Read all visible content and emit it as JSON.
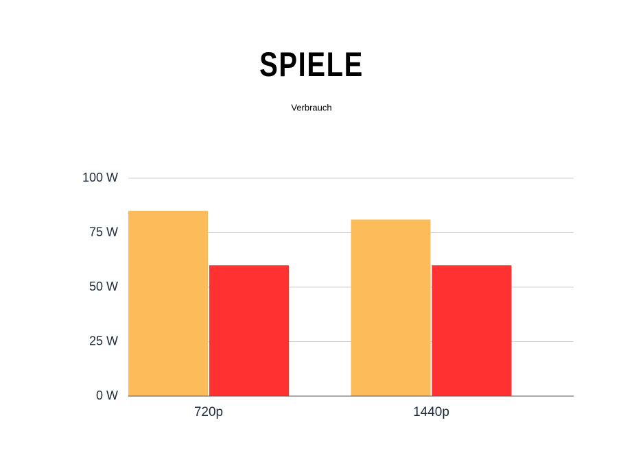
{
  "chart_data": {
    "type": "bar",
    "title": "SPIELE",
    "subtitle": "Verbrauch",
    "categories": [
      "720p",
      "1440p"
    ],
    "series": [
      {
        "color": "#fdbc5a",
        "values": [
          85,
          81
        ]
      },
      {
        "color": "#ff3131",
        "values": [
          60,
          60
        ]
      }
    ],
    "ylim": [
      0,
      100
    ],
    "yticks": [
      {
        "value": 0,
        "label": "0 W"
      },
      {
        "value": 25,
        "label": "25 W"
      },
      {
        "value": 50,
        "label": "50 W"
      },
      {
        "value": 75,
        "label": "75 W"
      },
      {
        "value": 100,
        "label": "100 W"
      }
    ],
    "grid": true
  }
}
